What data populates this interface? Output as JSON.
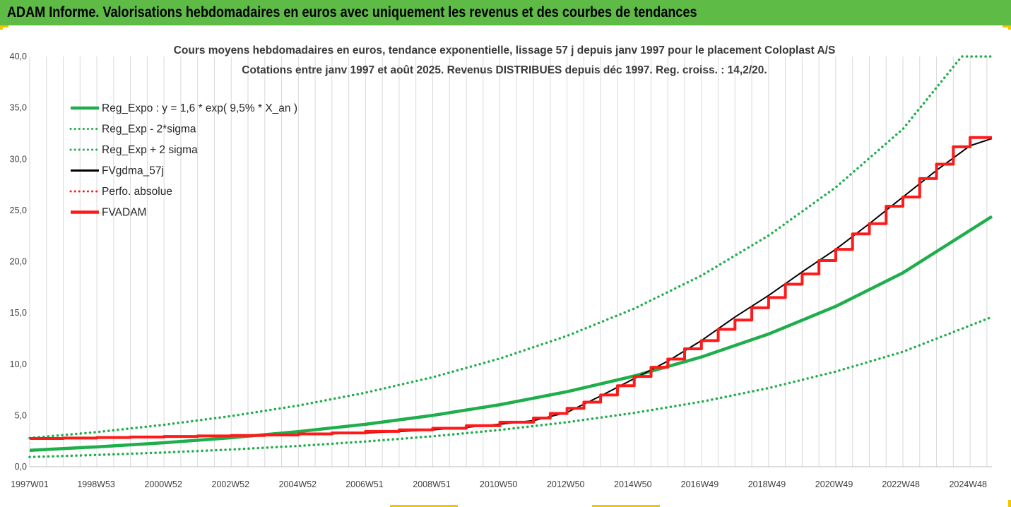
{
  "header": {
    "title": "ADAM Informe. Valorisations hebdomadaires en euros avec uniquement les revenus et des courbes de tendances"
  },
  "colors": {
    "header_bg": "#5dbb46",
    "corner_accent": "#f2c700",
    "trend": "#1fae4c",
    "price": "#000000",
    "adam": "#ff1a1a"
  },
  "chart_data": {
    "type": "line",
    "title": "Cours moyens hebdomadaires en euros, tendance exponentielle, lissage 57 j depuis janv 1997  pour le placement Coloplast A/S",
    "subtitle": "Cotations entre janv 1997 et août 2025.  Revenus DISTRIBUES depuis déc 1997. Reg. croiss. : 14,2/20.",
    "xlabel": "",
    "ylabel": "",
    "ylim": [
      0,
      40
    ],
    "yticks": [
      "0,0",
      "5,0",
      "10,0",
      "15,0",
      "20,0",
      "25,0",
      "30,0",
      "35,0",
      "40,0"
    ],
    "xlim": [
      1997.0,
      2025.65
    ],
    "xtick_labels": [
      "1997W01",
      "1998W53",
      "2000W52",
      "2002W52",
      "2004W52",
      "2006W51",
      "2008W51",
      "2010W50",
      "2012W50",
      "2014W50",
      "2016W49",
      "2018W49",
      "2020W49",
      "2022W48",
      "2024W48"
    ],
    "xtick_years": [
      1997.0,
      1998.98,
      2000.98,
      2002.98,
      2004.98,
      2006.97,
      2008.97,
      2010.96,
      2012.96,
      2014.96,
      2016.95,
      2018.95,
      2020.95,
      2022.94,
      2024.94
    ],
    "grid": "vertical",
    "legend_position": "top-left",
    "series": [
      {
        "name": "Reg_Expo : y = 1,6 * exp( 9,5% *  X_an )",
        "style": "solid-thick",
        "color": "#1fae4c",
        "x": [
          1997,
          1999,
          2001,
          2003,
          2005,
          2007,
          2009,
          2011,
          2013,
          2015,
          2017,
          2019,
          2021,
          2023,
          2025.65
        ],
        "values": [
          1.6,
          1.94,
          2.34,
          2.83,
          3.43,
          4.14,
          5.01,
          6.05,
          7.32,
          8.85,
          10.7,
          12.94,
          15.64,
          18.91,
          24.4
        ]
      },
      {
        "name": "Reg_Exp - 2*sigma",
        "style": "dotted",
        "color": "#1fae4c",
        "x": [
          1997,
          1999,
          2001,
          2003,
          2005,
          2007,
          2009,
          2011,
          2013,
          2015,
          2017,
          2019,
          2021,
          2023,
          2025.65
        ],
        "values": [
          0.95,
          1.15,
          1.39,
          1.68,
          2.03,
          2.46,
          2.97,
          3.59,
          4.34,
          5.25,
          6.34,
          7.67,
          9.28,
          11.21,
          14.6
        ]
      },
      {
        "name": "Reg_Exp + 2 sigma",
        "style": "dotted",
        "color": "#1fae4c",
        "x": [
          1997,
          1999,
          2001,
          2003,
          2005,
          2007,
          2009,
          2011,
          2013,
          2015,
          2017,
          2019,
          2021,
          2023,
          2024.75,
          2025.65
        ],
        "values": [
          2.8,
          3.38,
          4.09,
          4.94,
          5.97,
          7.22,
          8.73,
          10.55,
          12.76,
          15.42,
          18.64,
          22.54,
          27.24,
          32.93,
          40.0,
          40.0
        ]
      },
      {
        "name": "FVgdma_57j",
        "style": "solid",
        "color": "#000000",
        "x": [
          1997,
          1999,
          2001,
          2003,
          2005,
          2007,
          2009,
          2010,
          2011,
          2012,
          2013,
          2014,
          2015,
          2016,
          2017,
          2018,
          2019,
          2020,
          2021,
          2022,
          2023,
          2024,
          2025,
          2025.65
        ],
        "values": [
          2.75,
          2.82,
          2.9,
          3.0,
          3.12,
          3.3,
          3.6,
          3.85,
          4.15,
          4.5,
          5.3,
          6.9,
          8.6,
          10.3,
          12.3,
          14.6,
          16.7,
          19.0,
          21.2,
          23.7,
          26.3,
          28.9,
          31.3,
          32.0
        ]
      },
      {
        "name": "Perfo. absolue",
        "style": "dotted",
        "color": "#ff1a1a",
        "x": [],
        "values": []
      },
      {
        "name": "FVADAM",
        "style": "step-thick",
        "color": "#ff1a1a",
        "x": [
          1997,
          1998,
          1999,
          2000,
          2001,
          2002,
          2003,
          2004,
          2005,
          2006,
          2007,
          2008,
          2009,
          2010,
          2011,
          2012,
          2012.5,
          2013,
          2013.5,
          2014,
          2014.5,
          2015,
          2015.5,
          2016,
          2016.5,
          2017,
          2017.5,
          2018,
          2018.5,
          2019,
          2019.5,
          2020,
          2020.5,
          2021,
          2021.5,
          2022,
          2022.5,
          2023,
          2023.5,
          2024,
          2024.5,
          2025
        ],
        "values": [
          2.75,
          2.8,
          2.85,
          2.9,
          2.95,
          3.0,
          3.05,
          3.1,
          3.2,
          3.3,
          3.45,
          3.6,
          3.75,
          4.0,
          4.35,
          4.75,
          5.2,
          5.7,
          6.3,
          7.0,
          7.9,
          8.8,
          9.7,
          10.5,
          11.5,
          12.3,
          13.4,
          14.3,
          15.5,
          16.5,
          17.8,
          18.8,
          20.1,
          21.2,
          22.7,
          23.7,
          25.4,
          26.3,
          28.1,
          29.5,
          31.2,
          32.1
        ]
      }
    ]
  }
}
